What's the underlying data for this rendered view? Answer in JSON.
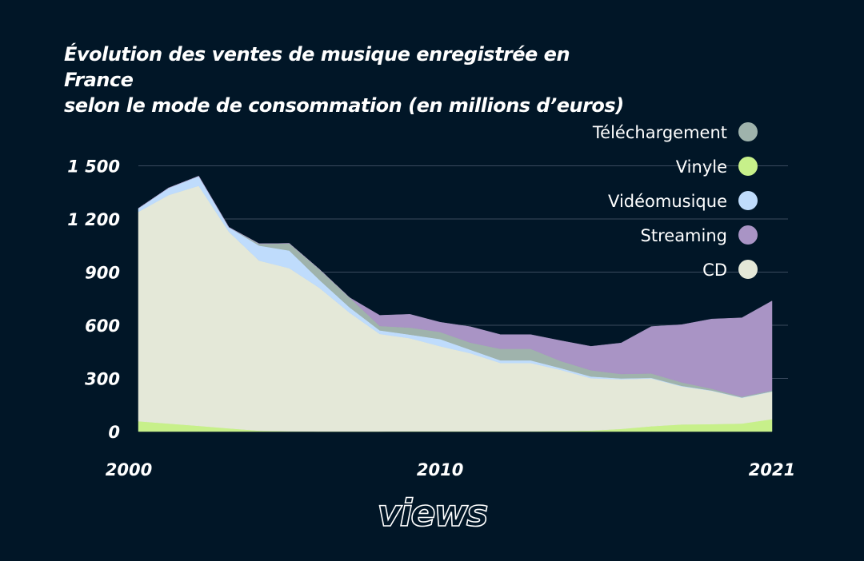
{
  "title_lines": [
    "Évolution des ventes de musique enregistrée en France",
    "selon le mode de consommation (en millions d’euros)"
  ],
  "brand": "views",
  "chart_data": {
    "type": "area",
    "stacked": true,
    "title": "Évolution des ventes de musique enregistrée en France selon le mode de consommation (en millions d’euros)",
    "x": [
      2000,
      2001,
      2002,
      2003,
      2004,
      2005,
      2006,
      2007,
      2008,
      2009,
      2010,
      2011,
      2012,
      2013,
      2014,
      2015,
      2016,
      2017,
      2018,
      2019,
      2020,
      2021
    ],
    "x_tick_labels": [
      "2000",
      "2010",
      "2021"
    ],
    "x_tick_values": [
      2000,
      2010,
      2021
    ],
    "y_tick_labels": [
      "0",
      "300",
      "600",
      "900",
      "1 200",
      "1 500"
    ],
    "y_tick_values": [
      0,
      300,
      600,
      900,
      1200,
      1500
    ],
    "ylim": [
      0,
      1500
    ],
    "grid": true,
    "legend_position": "top-right",
    "series": [
      {
        "name": "Vinyle",
        "color": "#c7f08a",
        "values": [
          58,
          45,
          32,
          18,
          5,
          2,
          1,
          1,
          1,
          2,
          2,
          2,
          2,
          2,
          3,
          6,
          15,
          30,
          40,
          42,
          45,
          70
        ]
      },
      {
        "name": "CD",
        "color": "#e4e8d8",
        "values": [
          1182,
          1290,
          1355,
          1110,
          960,
          920,
          810,
          670,
          550,
          525,
          480,
          440,
          385,
          385,
          345,
          295,
          280,
          270,
          215,
          188,
          145,
          155
        ]
      },
      {
        "name": "Vidéomusique",
        "color": "#bfdcfc",
        "values": [
          20,
          40,
          55,
          25,
          85,
          100,
          45,
          30,
          20,
          20,
          40,
          20,
          15,
          15,
          10,
          10,
          5,
          3,
          3,
          2,
          2,
          2
        ]
      },
      {
        "name": "Téléchargement",
        "color": "#9fb3ac",
        "values": [
          0,
          0,
          0,
          0,
          10,
          40,
          60,
          55,
          25,
          40,
          40,
          40,
          65,
          65,
          40,
          35,
          25,
          25,
          20,
          10,
          5,
          5
        ]
      },
      {
        "name": "Streaming",
        "color": "#a994c5",
        "values": [
          0,
          0,
          0,
          0,
          0,
          0,
          0,
          0,
          60,
          75,
          55,
          90,
          80,
          80,
          115,
          135,
          175,
          265,
          325,
          393,
          445,
          505
        ]
      }
    ],
    "legend_order": [
      "Téléchargement",
      "Vinyle",
      "Vidéomusique",
      "Streaming",
      "CD"
    ]
  }
}
